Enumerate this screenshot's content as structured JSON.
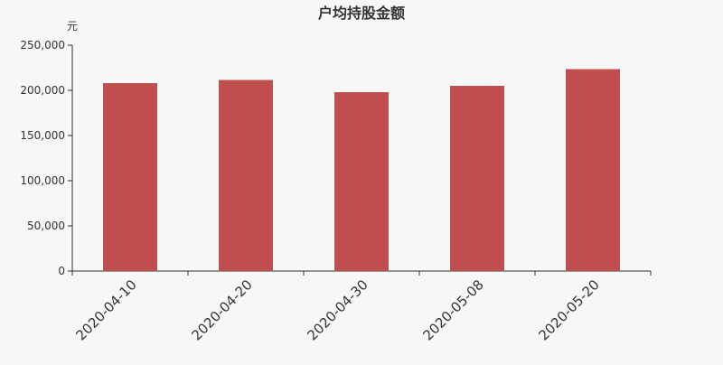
{
  "chart_data": {
    "type": "bar",
    "title": "户均持股金额",
    "ylabel": "元",
    "xlabel": "",
    "categories": [
      "2020-04-10",
      "2020-04-20",
      "2020-04-30",
      "2020-05-08",
      "2020-05-20"
    ],
    "values": [
      208000,
      211500,
      198000,
      205000,
      223500
    ],
    "ylim": [
      0,
      250000
    ],
    "yticks": [
      "0",
      "50,000",
      "100,000",
      "150,000",
      "200,000",
      "250,000"
    ],
    "grid": false,
    "bar_color": "#c0504d"
  }
}
